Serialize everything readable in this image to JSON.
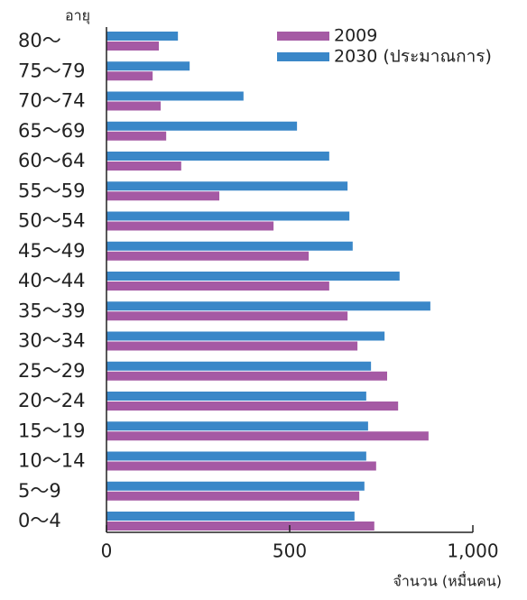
{
  "chart_data": {
    "type": "hbar",
    "y_label": "อายุ",
    "x_label": "จำนวน (หมื่นคน)",
    "categories": [
      "80～",
      "75～79",
      "70～74",
      "65～69",
      "60～64",
      "55～59",
      "50～54",
      "45～49",
      "40～44",
      "35～39",
      "30～34",
      "25～29",
      "20～24",
      "15～19",
      "10～14",
      "5～9",
      "0～4"
    ],
    "series": [
      {
        "name": "2009",
        "color": "#a55aa4",
        "values": [
          143,
          126,
          148,
          163,
          204,
          308,
          456,
          552,
          608,
          658,
          685,
          766,
          796,
          879,
          736,
          690,
          731
        ]
      },
      {
        "name": "2030 (ประมาณการ)",
        "color": "#3a87c8",
        "values": [
          195,
          227,
          374,
          520,
          608,
          658,
          663,
          672,
          800,
          884,
          759,
          722,
          709,
          714,
          709,
          704,
          677
        ]
      }
    ],
    "xlim": [
      0,
      1000
    ],
    "xticks": [
      0,
      500,
      {
        "value": 1000,
        "label": "1,000"
      }
    ]
  }
}
